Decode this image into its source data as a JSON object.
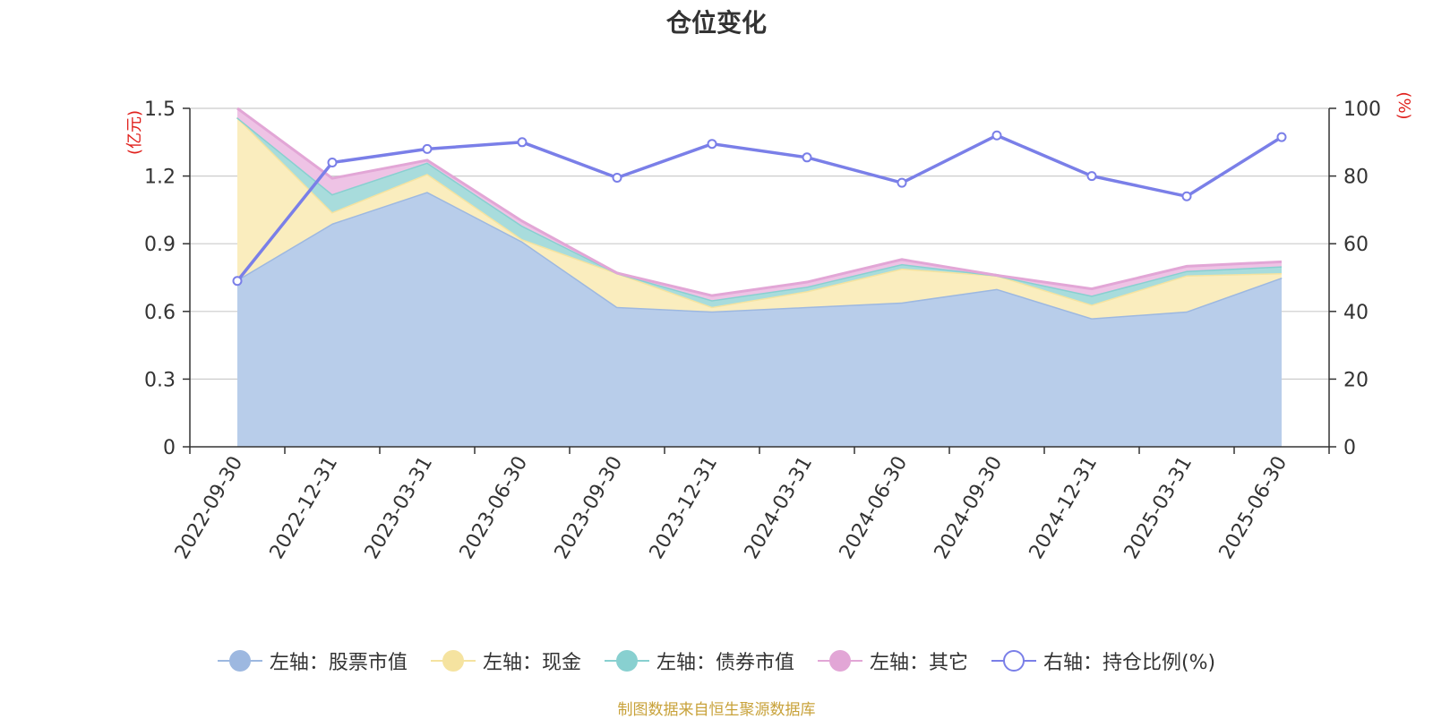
{
  "title": "仓位变化",
  "source_note": "制图数据来自恒生聚源数据库",
  "chart_data": {
    "type": "area",
    "x": [
      "2022-09-30",
      "2022-12-31",
      "2023-03-31",
      "2023-06-30",
      "2023-09-30",
      "2023-12-31",
      "2024-03-31",
      "2024-06-30",
      "2024-09-30",
      "2024-12-31",
      "2025-03-31",
      "2025-06-30"
    ],
    "y_left": {
      "label": "(亿元)",
      "ticks": [
        "0",
        "0.3",
        "0.6",
        "0.9",
        "1.2",
        "1.5"
      ],
      "min": 0,
      "max": 1.5
    },
    "y_right": {
      "label": "(%)",
      "ticks": [
        "0",
        "20",
        "40",
        "60",
        "80",
        "100"
      ],
      "min": 0,
      "max": 100
    },
    "stacked": true,
    "series": [
      {
        "name": "左轴：股票市值",
        "axis": "left",
        "type": "area",
        "color": "#9db8e0",
        "fill": "#b8cdea",
        "values": [
          0.74,
          0.99,
          1.13,
          0.91,
          0.62,
          0.6,
          0.62,
          0.64,
          0.7,
          0.57,
          0.6,
          0.75
        ]
      },
      {
        "name": "左轴：现金",
        "axis": "left",
        "type": "area",
        "color": "#f5e3a0",
        "fill": "#faedbe",
        "values": [
          0.72,
          0.05,
          0.08,
          0.01,
          0.15,
          0.02,
          0.07,
          0.15,
          0.06,
          0.06,
          0.16,
          0.02
        ]
      },
      {
        "name": "左轴：债券市值",
        "axis": "left",
        "type": "area",
        "color": "#88d0d0",
        "fill": "#a8dcdc",
        "values": [
          0.0,
          0.08,
          0.05,
          0.06,
          0.0,
          0.03,
          0.02,
          0.02,
          0.0,
          0.04,
          0.02,
          0.03
        ]
      },
      {
        "name": "左轴：其它",
        "axis": "left",
        "type": "area",
        "color": "#e2a6d6",
        "fill": "#eec3e5",
        "values": [
          0.04,
          0.07,
          0.01,
          0.02,
          0.0,
          0.02,
          0.02,
          0.02,
          0.0,
          0.03,
          0.02,
          0.02
        ]
      },
      {
        "name": "右轴：持仓比例(%)",
        "axis": "right",
        "type": "line",
        "color": "#7a7fe8",
        "values": [
          49,
          84,
          88,
          90,
          79.5,
          89.5,
          85.5,
          78,
          92,
          80,
          74,
          91.5
        ]
      }
    ],
    "legend_position": "bottom-center",
    "grid": true
  }
}
